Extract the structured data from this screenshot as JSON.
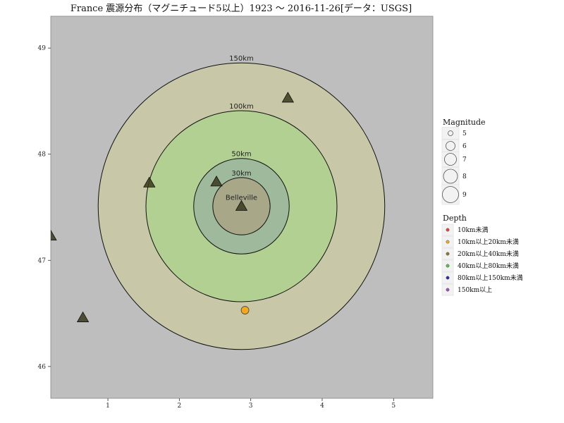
{
  "chart_data": {
    "type": "scatter",
    "title": "France 震源分布（マグニチュード5以上）1923 ～ 2016-11-26[データ：USGS]",
    "xlabel": "",
    "ylabel": "",
    "xlim": [
      0.2,
      5.55
    ],
    "ylim": [
      45.7,
      49.3
    ],
    "x_ticks": [
      1,
      2,
      3,
      4,
      5
    ],
    "y_ticks": [
      46,
      47,
      48,
      49
    ],
    "grid": false,
    "center": {
      "label": "Belleville",
      "x": 2.87,
      "y": 47.51
    },
    "rings": [
      {
        "label": "150km",
        "radius_deg_lat": 1.35,
        "color": "#c8c8a8"
      },
      {
        "label": "100km",
        "radius_deg_lat": 0.9,
        "color": "#b3d093"
      },
      {
        "label": "50km",
        "radius_deg_lat": 0.45,
        "color": "#9fb99c"
      },
      {
        "label": "30km",
        "radius_deg_lat": 0.27,
        "color": "#a8a889"
      }
    ],
    "points": [
      {
        "x": 2.92,
        "y": 46.53,
        "magnitude": 5.2,
        "depth": "10km以上20km未満"
      }
    ],
    "triangles": [
      {
        "x": 2.87,
        "y": 47.51
      },
      {
        "x": 2.52,
        "y": 47.74
      },
      {
        "x": 1.58,
        "y": 47.73
      },
      {
        "x": 3.52,
        "y": 48.53
      },
      {
        "x": 0.65,
        "y": 46.46
      },
      {
        "x": 0.2,
        "y": 47.23
      }
    ],
    "legend_position": "right",
    "magnitude_legend": {
      "title": "Magnitude",
      "items": [
        {
          "label": "5",
          "size": 3.5
        },
        {
          "label": "6",
          "size": 6.5
        },
        {
          "label": "7",
          "size": 8.5
        },
        {
          "label": "8",
          "size": 10
        },
        {
          "label": "9",
          "size": 11.5
        }
      ]
    },
    "depth_legend": {
      "title": "Depth",
      "items": [
        {
          "label": "10km未満",
          "color": "#e8433d"
        },
        {
          "label": "10km以上20km未満",
          "color": "#f4a81d"
        },
        {
          "label": "20km以上40km未満",
          "color": "#8b7a2d"
        },
        {
          "label": "40km以上80km未満",
          "color": "#53c341"
        },
        {
          "label": "80km以上150km未満",
          "color": "#2a2ab0"
        },
        {
          "label": "150km以上",
          "color": "#9f4fc0"
        }
      ]
    },
    "colors": {
      "panel_bg": "#bebebe",
      "triangle": "#3a3a1c",
      "ring_stroke": "#111111"
    }
  }
}
